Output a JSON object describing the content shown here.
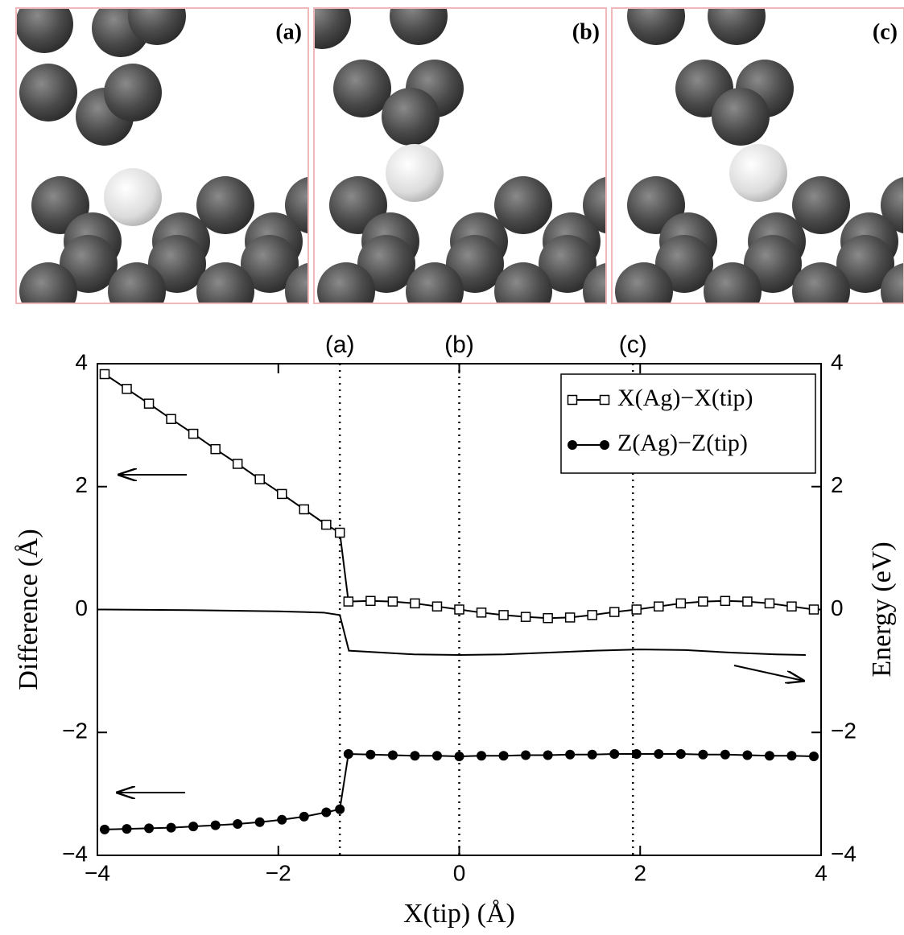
{
  "panels": [
    {
      "label": "(a)"
    },
    {
      "label": "(b)"
    },
    {
      "label": "(c)"
    }
  ],
  "chart_data": {
    "type": "line",
    "xlabel": "X(tip) (Å)",
    "ylabel": "Difference (Å)",
    "y2label": "Energy (eV)",
    "xlim": [
      -4,
      4
    ],
    "ylim": [
      -4,
      4
    ],
    "y2lim": [
      -4,
      4
    ],
    "xticks": [
      {
        "value": -4,
        "label": "−4"
      },
      {
        "value": -2,
        "label": "−2"
      },
      0,
      2,
      4
    ],
    "yticks": [
      {
        "value": -4,
        "label": "−4"
      },
      {
        "value": -2,
        "label": "−2"
      },
      0,
      2,
      4
    ],
    "y2ticks": [
      {
        "value": -4,
        "label": "−4"
      },
      {
        "value": -2,
        "label": "−2"
      },
      0,
      2,
      4
    ],
    "vlines": [
      {
        "x": -1.32,
        "label": "(a)"
      },
      {
        "x": 0,
        "label": "(b)"
      },
      {
        "x": 1.92,
        "label": "(c)"
      }
    ],
    "legend": "upper right",
    "series": [
      {
        "name": "X(Ag)−X(tip)",
        "color": "#000000",
        "marker": "square-open",
        "x": [
          -3.92,
          -3.675,
          -3.43,
          -3.185,
          -2.94,
          -2.695,
          -2.45,
          -2.205,
          -1.96,
          -1.715,
          -1.47,
          -1.32,
          -1.225,
          -0.98,
          -0.735,
          -0.49,
          -0.245,
          0,
          0.245,
          0.49,
          0.735,
          0.98,
          1.225,
          1.47,
          1.715,
          1.96,
          2.205,
          2.45,
          2.695,
          2.94,
          3.185,
          3.43,
          3.675,
          3.92
        ],
        "values": [
          3.83,
          3.59,
          3.35,
          3.1,
          2.86,
          2.61,
          2.37,
          2.12,
          1.88,
          1.63,
          1.38,
          1.25,
          0.13,
          0.14,
          0.13,
          0.1,
          0.05,
          0.0,
          -0.05,
          -0.09,
          -0.12,
          -0.14,
          -0.13,
          -0.09,
          -0.04,
          0.0,
          0.05,
          0.1,
          0.13,
          0.14,
          0.13,
          0.1,
          0.05,
          0.0
        ]
      },
      {
        "name": "Z(Ag)−Z(tip)",
        "color": "#000000",
        "marker": "circle",
        "x": [
          -3.92,
          -3.675,
          -3.43,
          -3.185,
          -2.94,
          -2.695,
          -2.45,
          -2.205,
          -1.96,
          -1.715,
          -1.47,
          -1.32,
          -1.225,
          -0.98,
          -0.735,
          -0.49,
          -0.245,
          0,
          0.245,
          0.49,
          0.735,
          0.98,
          1.225,
          1.47,
          1.715,
          1.96,
          2.205,
          2.45,
          2.695,
          2.94,
          3.185,
          3.43,
          3.675,
          3.92
        ],
        "values": [
          -3.58,
          -3.57,
          -3.56,
          -3.55,
          -3.53,
          -3.51,
          -3.49,
          -3.46,
          -3.42,
          -3.37,
          -3.3,
          -3.25,
          -2.35,
          -2.36,
          -2.37,
          -2.38,
          -2.38,
          -2.39,
          -2.38,
          -2.38,
          -2.37,
          -2.37,
          -2.36,
          -2.36,
          -2.35,
          -2.35,
          -2.35,
          -2.35,
          -2.36,
          -2.36,
          -2.37,
          -2.38,
          -2.38,
          -2.39
        ]
      },
      {
        "color": "#000000",
        "marker": "none",
        "axis": "y2",
        "x": [
          -3.92,
          -3.0,
          -2.0,
          -1.5,
          -1.32,
          -1.22,
          -0.5,
          0,
          0.5,
          1,
          1.5,
          2,
          2.5,
          3,
          3.5,
          3.83
        ],
        "values": [
          0,
          -0.01,
          -0.03,
          -0.05,
          -0.09,
          -0.67,
          -0.73,
          -0.74,
          -0.73,
          -0.7,
          -0.67,
          -0.65,
          -0.66,
          -0.7,
          -0.73,
          -0.74
        ]
      }
    ]
  }
}
